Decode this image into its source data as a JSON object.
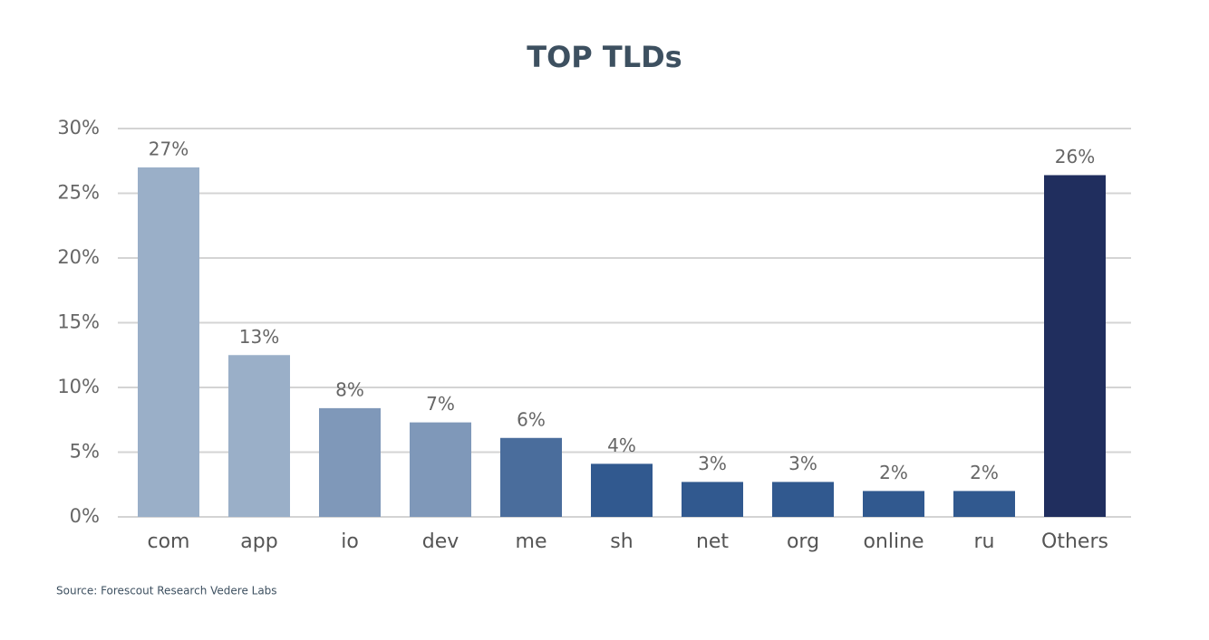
{
  "chart_data": {
    "type": "bar",
    "title": "TOP TLDs",
    "categories": [
      "com",
      "app",
      "io",
      "dev",
      "me",
      "sh",
      "net",
      "org",
      "online",
      "ru",
      "Others"
    ],
    "values": [
      27,
      12.5,
      8.4,
      7.3,
      6.1,
      4.1,
      2.7,
      2.7,
      2.0,
      2.0,
      26.4
    ],
    "value_labels": [
      "27%",
      "13%",
      "8%",
      "7%",
      "6%",
      "4%",
      "3%",
      "3%",
      "2%",
      "2%",
      "26%"
    ],
    "colors": [
      "#9aafc8",
      "#9aafc8",
      "#7f98b9",
      "#7f98b9",
      "#4a6d9c",
      "#31598f",
      "#31598f",
      "#31598f",
      "#31598f",
      "#31598f",
      "#202e5e"
    ],
    "ylim": [
      0,
      30
    ],
    "yticks": [
      {
        "value": 0,
        "label": "0%"
      },
      {
        "value": 5,
        "label": "5%"
      },
      {
        "value": 10,
        "label": "10%"
      },
      {
        "value": 15,
        "label": "15%"
      },
      {
        "value": 20,
        "label": "20%"
      },
      {
        "value": 25,
        "label": "25%"
      },
      {
        "value": 30,
        "label": "30%"
      }
    ],
    "grid": true,
    "source": "Source: Forescout Research Vedere Labs"
  }
}
